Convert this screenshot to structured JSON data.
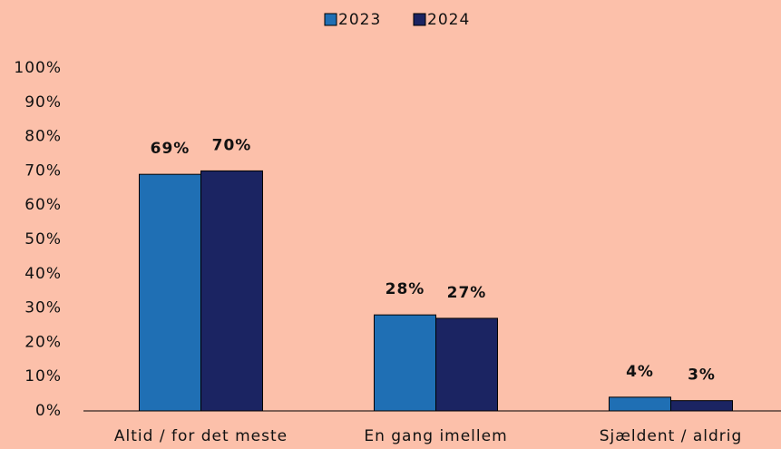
{
  "chart_data": {
    "type": "bar",
    "categories": [
      "Altid / for det meste",
      "En gang imellem",
      "Sjældent / aldrig"
    ],
    "series": [
      {
        "name": "2023",
        "color": "#1f6fb4",
        "values": [
          69,
          28,
          4
        ],
        "value_labels": [
          "69%",
          "28%",
          "4%"
        ]
      },
      {
        "name": "2024",
        "color": "#1b2462",
        "values": [
          70,
          27,
          3
        ],
        "value_labels": [
          "70%",
          "27%",
          "3%"
        ]
      }
    ],
    "ylim": [
      0,
      100
    ],
    "yticks": [
      {
        "value": 0,
        "label": "0%"
      },
      {
        "value": 10,
        "label": "10%"
      },
      {
        "value": 20,
        "label": "20%"
      },
      {
        "value": 30,
        "label": "30%"
      },
      {
        "value": 40,
        "label": "40%"
      },
      {
        "value": 50,
        "label": "50%"
      },
      {
        "value": 60,
        "label": "60%"
      },
      {
        "value": 70,
        "label": "70%"
      },
      {
        "value": 80,
        "label": "80%"
      },
      {
        "value": 90,
        "label": "90%"
      },
      {
        "value": 100,
        "label": "100%"
      }
    ],
    "legend": "top"
  }
}
